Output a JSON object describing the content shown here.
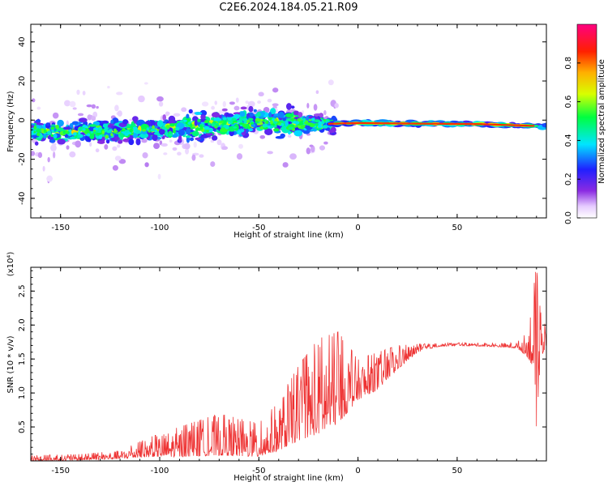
{
  "figure_title": "C2E6.2024.184.05.21.R09",
  "chart_data": [
    {
      "type": "heatmap",
      "title": "C2E6.2024.184.05.21.R09",
      "xlabel": "Height of straight line (km)",
      "ylabel": "Frequency (Hz)",
      "xlim": [
        -165,
        95
      ],
      "ylim": [
        -50,
        49
      ],
      "xticks": [
        -150,
        -100,
        -50,
        0,
        50
      ],
      "yticks": [
        -40,
        -20,
        0,
        20,
        40
      ],
      "colorbar": {
        "label": "Normalized spectral amplitude",
        "range": [
          0,
          1
        ],
        "ticks": [
          "0.0",
          "0.2",
          "0.4",
          "0.6",
          "0.8"
        ],
        "colormap": "rainbow (white-purple-blue-cyan-green-yellow-red-magenta)"
      },
      "ridge": {
        "description": "broad noisy band centered near -4 Hz for x < -15 km; narrow strong line at about -2 Hz for x > -15 km",
        "center_frequency_hz": [
          {
            "x": -160,
            "f": -6
          },
          {
            "x": -120,
            "f": -6
          },
          {
            "x": -80,
            "f": -3
          },
          {
            "x": -50,
            "f": -1
          },
          {
            "x": -20,
            "f": -2
          },
          {
            "x": 0,
            "f": -1.5
          },
          {
            "x": 30,
            "f": -1.8
          },
          {
            "x": 60,
            "f": -2
          },
          {
            "x": 90,
            "f": -3
          }
        ]
      }
    },
    {
      "type": "line",
      "xlabel": "Height of straight line (km)",
      "ylabel": "SNR (10 * v/v)",
      "y_multiplier": "(x10⁴)",
      "xlim": [
        -165,
        95
      ],
      "ylim": [
        0,
        2.85
      ],
      "xticks": [
        -150,
        -100,
        -50,
        0,
        50
      ],
      "yticks": [
        "0.5",
        "1.0",
        "1.5",
        "2.0",
        "2.5"
      ],
      "series_color": "#ee3333",
      "envelope": {
        "description": "approximate lower/upper envelope of the noisy SNR trace (units of 10^4)",
        "x": [
          -165,
          -140,
          -120,
          -105,
          -90,
          -70,
          -50,
          -40,
          -30,
          -20,
          -10,
          0,
          10,
          20,
          30,
          40,
          50,
          60,
          70,
          80,
          85,
          88,
          90,
          92,
          95
        ],
        "lower": [
          0.0,
          0.01,
          0.03,
          0.06,
          0.06,
          0.08,
          0.06,
          0.15,
          0.3,
          0.4,
          0.55,
          0.9,
          1.05,
          1.35,
          1.6,
          1.68,
          1.7,
          1.69,
          1.68,
          1.66,
          1.55,
          1.4,
          0.5,
          1.5,
          1.7
        ],
        "upper": [
          0.08,
          0.1,
          0.15,
          0.35,
          0.5,
          0.7,
          0.55,
          0.9,
          1.4,
          1.8,
          1.9,
          1.5,
          1.6,
          1.7,
          1.72,
          1.73,
          1.74,
          1.74,
          1.73,
          1.75,
          1.9,
          2.55,
          2.85,
          2.2,
          1.95
        ]
      }
    }
  ]
}
